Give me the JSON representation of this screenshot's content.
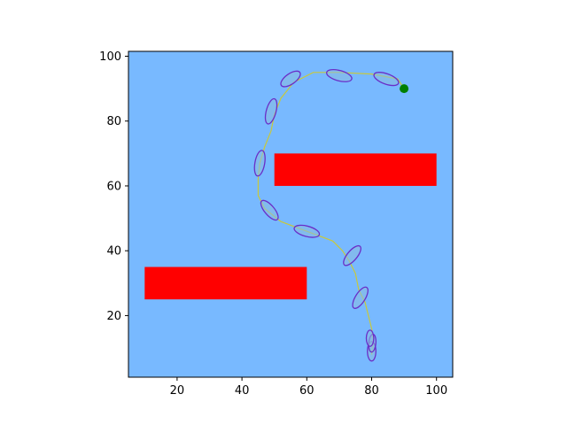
{
  "colors": {
    "figure_background": "#ffffff",
    "plot_background": "#78b9ff",
    "obstacle": "#ff0000",
    "path": "#c8c83c",
    "ellipse_edge": "#6a2ec8",
    "ellipse_fill": "#8bbce0",
    "goal": "#008000",
    "axis": "#000000"
  },
  "chart_data": {
    "type": "scatter",
    "title": "",
    "xlabel": "",
    "ylabel": "",
    "xlim": [
      5,
      105
    ],
    "ylim": [
      1,
      101.5
    ],
    "xticks": [
      20,
      40,
      60,
      80,
      100
    ],
    "yticks": [
      20,
      40,
      60,
      80,
      100
    ],
    "grid": false,
    "obstacles": [
      {
        "x": [
          50,
          100
        ],
        "y": [
          60,
          70
        ]
      },
      {
        "x": [
          10,
          60
        ],
        "y": [
          25,
          35
        ]
      }
    ],
    "path": {
      "x": [
        80,
        80.5,
        80,
        79,
        78,
        76,
        75,
        73,
        71,
        68,
        60,
        52,
        47,
        45,
        45,
        45.5,
        47,
        49,
        50,
        52,
        56,
        62,
        70,
        80,
        88,
        90
      ],
      "y": [
        8,
        12,
        16,
        20,
        24,
        28,
        33,
        37,
        40,
        43,
        46,
        49,
        53,
        57,
        62,
        67,
        72,
        77,
        82,
        87,
        92,
        95,
        95,
        94.5,
        93,
        90
      ]
    },
    "ellipses": [
      {
        "x": 80,
        "y": 9,
        "width": 6,
        "height": 2.6,
        "angle": 90
      },
      {
        "x": 80.2,
        "y": 11.5,
        "width": 5.5,
        "height": 2.2,
        "angle": 85
      },
      {
        "x": 79.5,
        "y": 13,
        "width": 5,
        "height": 2.3,
        "angle": 90
      },
      {
        "x": 76.5,
        "y": 25.5,
        "width": 7.5,
        "height": 3,
        "angle": 58
      },
      {
        "x": 74,
        "y": 38.5,
        "width": 7.5,
        "height": 3,
        "angle": 50
      },
      {
        "x": 60,
        "y": 46,
        "width": 8,
        "height": 3.2,
        "angle": -15
      },
      {
        "x": 48.5,
        "y": 52.5,
        "width": 7.5,
        "height": 3,
        "angle": -50
      },
      {
        "x": 45.5,
        "y": 67,
        "width": 8,
        "height": 3,
        "angle": 80
      },
      {
        "x": 49,
        "y": 83,
        "width": 8,
        "height": 3,
        "angle": 75
      },
      {
        "x": 55,
        "y": 93,
        "width": 7,
        "height": 3.2,
        "angle": 35
      },
      {
        "x": 70,
        "y": 94,
        "width": 8,
        "height": 3.2,
        "angle": -15
      },
      {
        "x": 84.5,
        "y": 93,
        "width": 8,
        "height": 3.2,
        "angle": -20
      }
    ],
    "goal": {
      "x": 90,
      "y": 90
    }
  }
}
